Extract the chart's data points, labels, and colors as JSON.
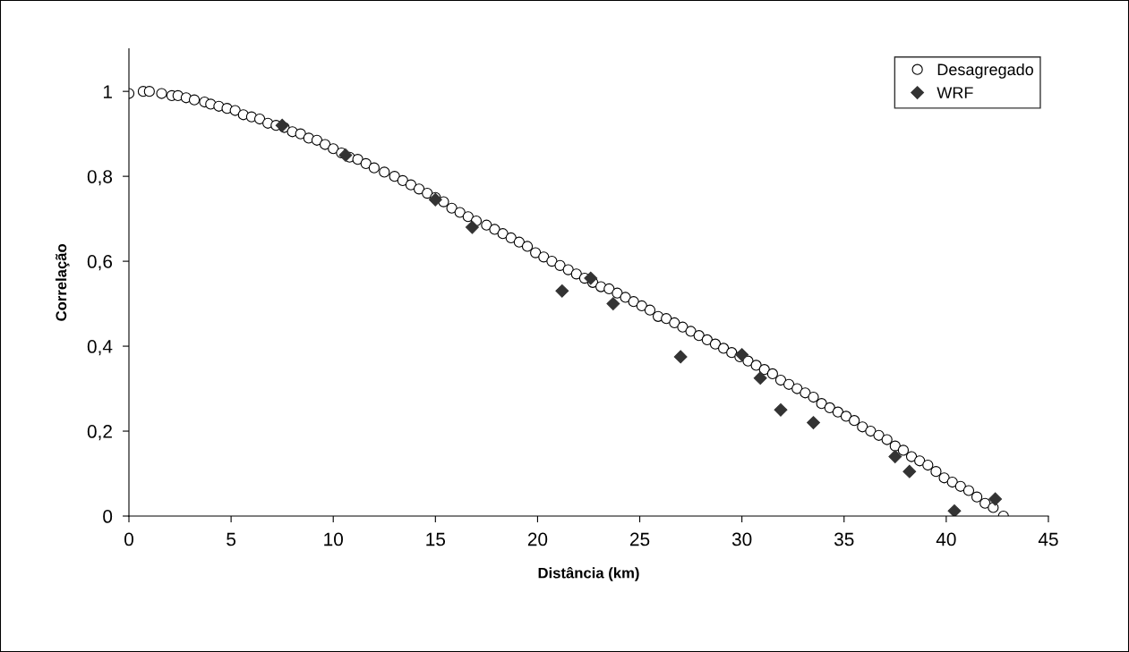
{
  "chart_data": {
    "type": "scatter",
    "xlabel": "Distância (km)",
    "ylabel": "Correlação",
    "xlim": [
      0,
      45
    ],
    "xticks": [
      0,
      5,
      10,
      15,
      20,
      25,
      30,
      35,
      40,
      45
    ],
    "ylim": [
      0,
      1.1
    ],
    "yticks": [
      0,
      {
        "value": 0.2,
        "label": "0,2"
      },
      {
        "value": 0.4,
        "label": "0,4"
      },
      {
        "value": 0.6,
        "label": "0,6"
      },
      {
        "value": 0.8,
        "label": "0,8"
      },
      1
    ],
    "grid": false,
    "legend": "top right",
    "series": [
      {
        "name": "Desagregado",
        "color": "#ffffff",
        "marker": "circle",
        "x": [
          0,
          0.7,
          1.0,
          1.6,
          2.1,
          2.4,
          2.8,
          3.2,
          3.7,
          4.0,
          4.4,
          4.8,
          5.2,
          5.6,
          6.0,
          6.4,
          6.8,
          7.2,
          7.6,
          8.0,
          8.4,
          8.8,
          9.2,
          9.6,
          10.0,
          10.4,
          10.8,
          11.2,
          11.6,
          12.0,
          12.5,
          13.0,
          13.4,
          13.8,
          14.2,
          14.6,
          15.0,
          15.4,
          15.8,
          16.2,
          16.6,
          17.0,
          17.5,
          17.9,
          18.3,
          18.7,
          19.1,
          19.5,
          19.9,
          20.3,
          20.7,
          21.1,
          21.5,
          21.9,
          22.3,
          22.7,
          23.1,
          23.5,
          23.9,
          24.3,
          24.7,
          25.1,
          25.5,
          25.9,
          26.3,
          26.7,
          27.1,
          27.5,
          27.9,
          28.3,
          28.7,
          29.1,
          29.5,
          29.9,
          30.3,
          30.7,
          31.1,
          31.5,
          31.9,
          32.3,
          32.7,
          33.1,
          33.5,
          33.9,
          34.3,
          34.7,
          35.1,
          35.5,
          35.9,
          36.3,
          36.7,
          37.1,
          37.5,
          37.9,
          38.3,
          38.7,
          39.1,
          39.5,
          39.9,
          40.3,
          40.7,
          41.1,
          41.5,
          41.9,
          42.3,
          42.8
        ],
        "values": [
          0.995,
          1.0,
          1.0,
          0.995,
          0.99,
          0.99,
          0.985,
          0.98,
          0.975,
          0.97,
          0.965,
          0.96,
          0.955,
          0.945,
          0.94,
          0.935,
          0.925,
          0.92,
          0.915,
          0.905,
          0.9,
          0.89,
          0.885,
          0.875,
          0.865,
          0.855,
          0.845,
          0.84,
          0.83,
          0.82,
          0.81,
          0.8,
          0.79,
          0.78,
          0.77,
          0.76,
          0.75,
          0.74,
          0.725,
          0.715,
          0.705,
          0.695,
          0.685,
          0.675,
          0.665,
          0.655,
          0.645,
          0.635,
          0.62,
          0.61,
          0.6,
          0.59,
          0.58,
          0.57,
          0.56,
          0.55,
          0.54,
          0.535,
          0.525,
          0.515,
          0.505,
          0.495,
          0.485,
          0.47,
          0.465,
          0.455,
          0.445,
          0.435,
          0.425,
          0.415,
          0.405,
          0.395,
          0.385,
          0.375,
          0.365,
          0.355,
          0.345,
          0.335,
          0.32,
          0.31,
          0.3,
          0.29,
          0.28,
          0.265,
          0.255,
          0.245,
          0.235,
          0.225,
          0.21,
          0.2,
          0.19,
          0.18,
          0.165,
          0.155,
          0.14,
          0.13,
          0.12,
          0.105,
          0.09,
          0.08,
          0.07,
          0.06,
          0.045,
          0.03,
          0.02,
          0.0
        ]
      },
      {
        "name": "WRF",
        "color": "#333333",
        "marker": "diamond",
        "x": [
          7.5,
          10.6,
          15.0,
          16.8,
          21.2,
          22.6,
          23.7,
          27.0,
          30.0,
          30.9,
          31.9,
          33.5,
          37.5,
          38.2,
          40.4,
          42.4
        ],
        "values": [
          0.92,
          0.85,
          0.745,
          0.68,
          0.53,
          0.56,
          0.5,
          0.375,
          0.38,
          0.325,
          0.25,
          0.22,
          0.14,
          0.105,
          0.012,
          0.04
        ]
      }
    ]
  }
}
